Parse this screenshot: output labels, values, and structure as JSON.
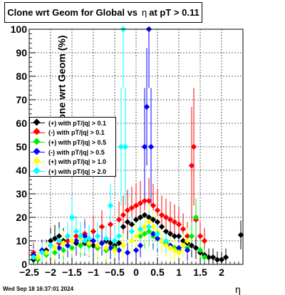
{
  "chart_data": {
    "type": "scatter",
    "title": "Clone wrt Geom for Global vs",
    "title_symbol": "η",
    "title_suffix": "at pT > 0.11",
    "xlabel": "η",
    "ylabel": "Clone wrt Geom (%)",
    "xlim": [
      -2.5,
      2.5
    ],
    "ylim": [
      0,
      100
    ],
    "x_ticks": [
      "−2.5",
      "−2",
      "−1.5",
      "−1",
      "−0.5",
      "0",
      "0.5",
      "1",
      "1.5",
      "2"
    ],
    "y_ticks": [
      "0",
      "10",
      "20",
      "30",
      "40",
      "50",
      "60",
      "70",
      "80",
      "90",
      "100"
    ],
    "grid": true,
    "legend_position": "left-middle",
    "timestamp": "Wed Sep 18 16:37:01 2024",
    "series": [
      {
        "name": "(+) with pT/|q| > 0.1",
        "color": "#000000",
        "points": [
          [
            -2.4,
            2
          ],
          [
            -2.3,
            3
          ],
          [
            -2.1,
            6
          ],
          [
            -2.0,
            10
          ],
          [
            -1.9,
            11
          ],
          [
            -1.8,
            12
          ],
          [
            -1.7,
            10
          ],
          [
            -1.6,
            12
          ],
          [
            -1.5,
            10
          ],
          [
            -1.4,
            9
          ],
          [
            -1.3,
            12
          ],
          [
            -1.2,
            9
          ],
          [
            -1.1,
            10
          ],
          [
            -1.0,
            8
          ],
          [
            -0.9,
            7
          ],
          [
            -0.8,
            9
          ],
          [
            -0.7,
            10
          ],
          [
            -0.6,
            9
          ],
          [
            -0.5,
            8
          ],
          [
            -0.4,
            9
          ],
          [
            -0.3,
            16
          ],
          [
            -0.2,
            18
          ],
          [
            -0.1,
            17
          ],
          [
            0.0,
            19
          ],
          [
            0.1,
            20
          ],
          [
            0.2,
            21
          ],
          [
            0.3,
            20
          ],
          [
            0.4,
            19
          ],
          [
            0.5,
            18
          ],
          [
            0.6,
            16
          ],
          [
            0.7,
            14
          ],
          [
            0.8,
            13
          ],
          [
            0.9,
            12
          ],
          [
            1.0,
            12
          ],
          [
            1.1,
            10
          ],
          [
            1.2,
            9
          ],
          [
            1.3,
            8
          ],
          [
            1.4,
            7
          ],
          [
            1.5,
            5
          ],
          [
            1.6,
            4
          ],
          [
            1.7,
            3
          ],
          [
            1.8,
            3
          ],
          [
            1.9,
            2
          ],
          [
            2.0,
            2
          ],
          [
            2.1,
            3
          ],
          [
            2.45,
            12.5
          ]
        ]
      },
      {
        "name": "(-) with pT/|q| > 0.1",
        "color": "#ff0000",
        "points": [
          [
            -2.4,
            5
          ],
          [
            -2.2,
            6
          ],
          [
            -2.0,
            8
          ],
          [
            -1.8,
            9
          ],
          [
            -1.6,
            10
          ],
          [
            -1.4,
            12
          ],
          [
            -1.2,
            13
          ],
          [
            -1.0,
            14
          ],
          [
            -0.8,
            16
          ],
          [
            -0.6,
            17
          ],
          [
            -0.4,
            19
          ],
          [
            -0.3,
            21
          ],
          [
            -0.2,
            23
          ],
          [
            -0.1,
            24
          ],
          [
            0.0,
            25
          ],
          [
            0.1,
            26
          ],
          [
            0.2,
            27
          ],
          [
            0.3,
            27
          ],
          [
            0.4,
            25
          ],
          [
            0.5,
            23
          ],
          [
            0.6,
            21
          ],
          [
            0.7,
            20
          ],
          [
            0.8,
            19
          ],
          [
            0.9,
            18
          ],
          [
            1.0,
            17
          ],
          [
            1.1,
            15
          ],
          [
            1.2,
            12
          ],
          [
            1.3,
            42
          ],
          [
            1.35,
            50
          ],
          [
            1.4,
            19
          ],
          [
            1.5,
            12
          ],
          [
            1.6,
            10
          ]
        ]
      },
      {
        "name": "(+) with pT/|q| > 0.5",
        "color": "#00ee00",
        "points": [
          [
            -2.3,
            2
          ],
          [
            -2.1,
            4
          ],
          [
            -1.9,
            5
          ],
          [
            -1.7,
            6
          ],
          [
            -1.5,
            7
          ],
          [
            -1.3,
            8
          ],
          [
            -1.1,
            8
          ],
          [
            -0.9,
            7
          ],
          [
            -0.7,
            6
          ],
          [
            -0.5,
            7
          ],
          [
            -0.3,
            8
          ],
          [
            -0.1,
            10
          ],
          [
            0.1,
            12
          ],
          [
            0.2,
            13
          ],
          [
            0.3,
            14
          ],
          [
            0.4,
            12
          ],
          [
            0.5,
            11
          ],
          [
            0.6,
            10
          ],
          [
            0.7,
            9
          ],
          [
            0.8,
            8
          ],
          [
            0.9,
            7
          ],
          [
            1.0,
            6
          ],
          [
            1.1,
            8
          ],
          [
            1.2,
            7
          ],
          [
            1.3,
            12
          ],
          [
            1.4,
            20
          ],
          [
            1.5,
            6
          ],
          [
            1.6,
            3
          ]
        ]
      },
      {
        "name": "(-) with pT/|q| > 0.5",
        "color": "#0000ff",
        "points": [
          [
            -2.4,
            4
          ],
          [
            -2.2,
            6
          ],
          [
            -2.0,
            8
          ],
          [
            -1.8,
            7
          ],
          [
            -1.6,
            8
          ],
          [
            -1.4,
            10
          ],
          [
            -1.2,
            12
          ],
          [
            -1.0,
            10
          ],
          [
            -0.8,
            9
          ],
          [
            -0.6,
            7
          ],
          [
            -0.4,
            6
          ],
          [
            -0.2,
            5
          ],
          [
            0.0,
            6
          ],
          [
            0.1,
            8
          ],
          [
            0.2,
            50
          ],
          [
            0.25,
            67
          ],
          [
            0.3,
            100
          ],
          [
            0.35,
            50
          ],
          [
            0.4,
            13
          ],
          [
            0.5,
            11
          ],
          [
            0.6,
            10
          ],
          [
            0.8,
            8
          ],
          [
            1.0,
            7
          ],
          [
            1.2,
            6
          ]
        ]
      },
      {
        "name": "(+) with pT/|q| > 1.0",
        "color": "#ffff00",
        "points": [
          [
            -2.3,
            3
          ],
          [
            -2.1,
            5
          ],
          [
            -1.9,
            7
          ],
          [
            -1.7,
            9
          ],
          [
            -1.5,
            10
          ],
          [
            -1.3,
            11
          ],
          [
            -1.1,
            9
          ],
          [
            -0.9,
            8
          ],
          [
            -0.7,
            7
          ],
          [
            -0.5,
            6
          ],
          [
            -0.3,
            8
          ],
          [
            -0.1,
            10
          ],
          [
            0.0,
            12
          ],
          [
            0.1,
            14
          ],
          [
            0.2,
            16
          ],
          [
            0.3,
            18
          ],
          [
            0.4,
            16
          ],
          [
            0.5,
            14
          ],
          [
            0.6,
            10
          ],
          [
            0.7,
            8
          ],
          [
            0.8,
            7
          ],
          [
            0.9,
            6
          ],
          [
            1.0,
            5
          ],
          [
            1.1,
            8
          ],
          [
            1.2,
            10
          ]
        ]
      },
      {
        "name": "(+) with pT/|q| > 2.0",
        "color": "#00ffff",
        "points": [
          [
            -2.4,
            3
          ],
          [
            -2.2,
            5
          ],
          [
            -2.0,
            8
          ],
          [
            -1.8,
            10
          ],
          [
            -1.6,
            12
          ],
          [
            -1.5,
            20
          ],
          [
            -1.4,
            14
          ],
          [
            -1.3,
            12
          ],
          [
            -1.2,
            10
          ],
          [
            -1.1,
            11
          ],
          [
            -0.9,
            12
          ],
          [
            -0.7,
            11
          ],
          [
            -0.6,
            25
          ],
          [
            -0.5,
            10
          ],
          [
            -0.4,
            12
          ],
          [
            -0.35,
            50
          ],
          [
            -0.3,
            100
          ],
          [
            -0.25,
            50
          ],
          [
            -0.1,
            14
          ],
          [
            0.1,
            15
          ],
          [
            0.3,
            16
          ],
          [
            0.5,
            13
          ],
          [
            0.7,
            10
          ]
        ]
      }
    ]
  }
}
